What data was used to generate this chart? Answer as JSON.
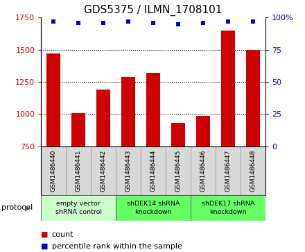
{
  "title": "GDS5375 / ILMN_1708101",
  "samples": [
    "GSM1486440",
    "GSM1486441",
    "GSM1486442",
    "GSM1486443",
    "GSM1486444",
    "GSM1486445",
    "GSM1486446",
    "GSM1486447",
    "GSM1486448"
  ],
  "counts": [
    1470,
    1005,
    1190,
    1285,
    1320,
    930,
    985,
    1650,
    1500
  ],
  "percentile_ranks": [
    97,
    96,
    96,
    97,
    96,
    95,
    96,
    97,
    97
  ],
  "ylim_left": [
    750,
    1750
  ],
  "ylim_right": [
    0,
    100
  ],
  "yticks_left": [
    750,
    1000,
    1250,
    1500,
    1750
  ],
  "yticks_right": [
    0,
    25,
    50,
    75,
    100
  ],
  "bar_color": "#cc0000",
  "marker_color": "#0000cc",
  "protocols": [
    {
      "label": "empty vector\nshRNA control",
      "start": 0,
      "end": 3,
      "color": "#ccffcc"
    },
    {
      "label": "shDEK14 shRNA\nknockdown",
      "start": 3,
      "end": 6,
      "color": "#66ff66"
    },
    {
      "label": "shDEK17 shRNA\nknockdown",
      "start": 6,
      "end": 9,
      "color": "#66ff66"
    }
  ],
  "legend_count_label": "count",
  "legend_pct_label": "percentile rank within the sample",
  "protocol_label": "protocol",
  "grid_dotted_at": [
    1000,
    1250,
    1500
  ],
  "bar_bottom": 750
}
